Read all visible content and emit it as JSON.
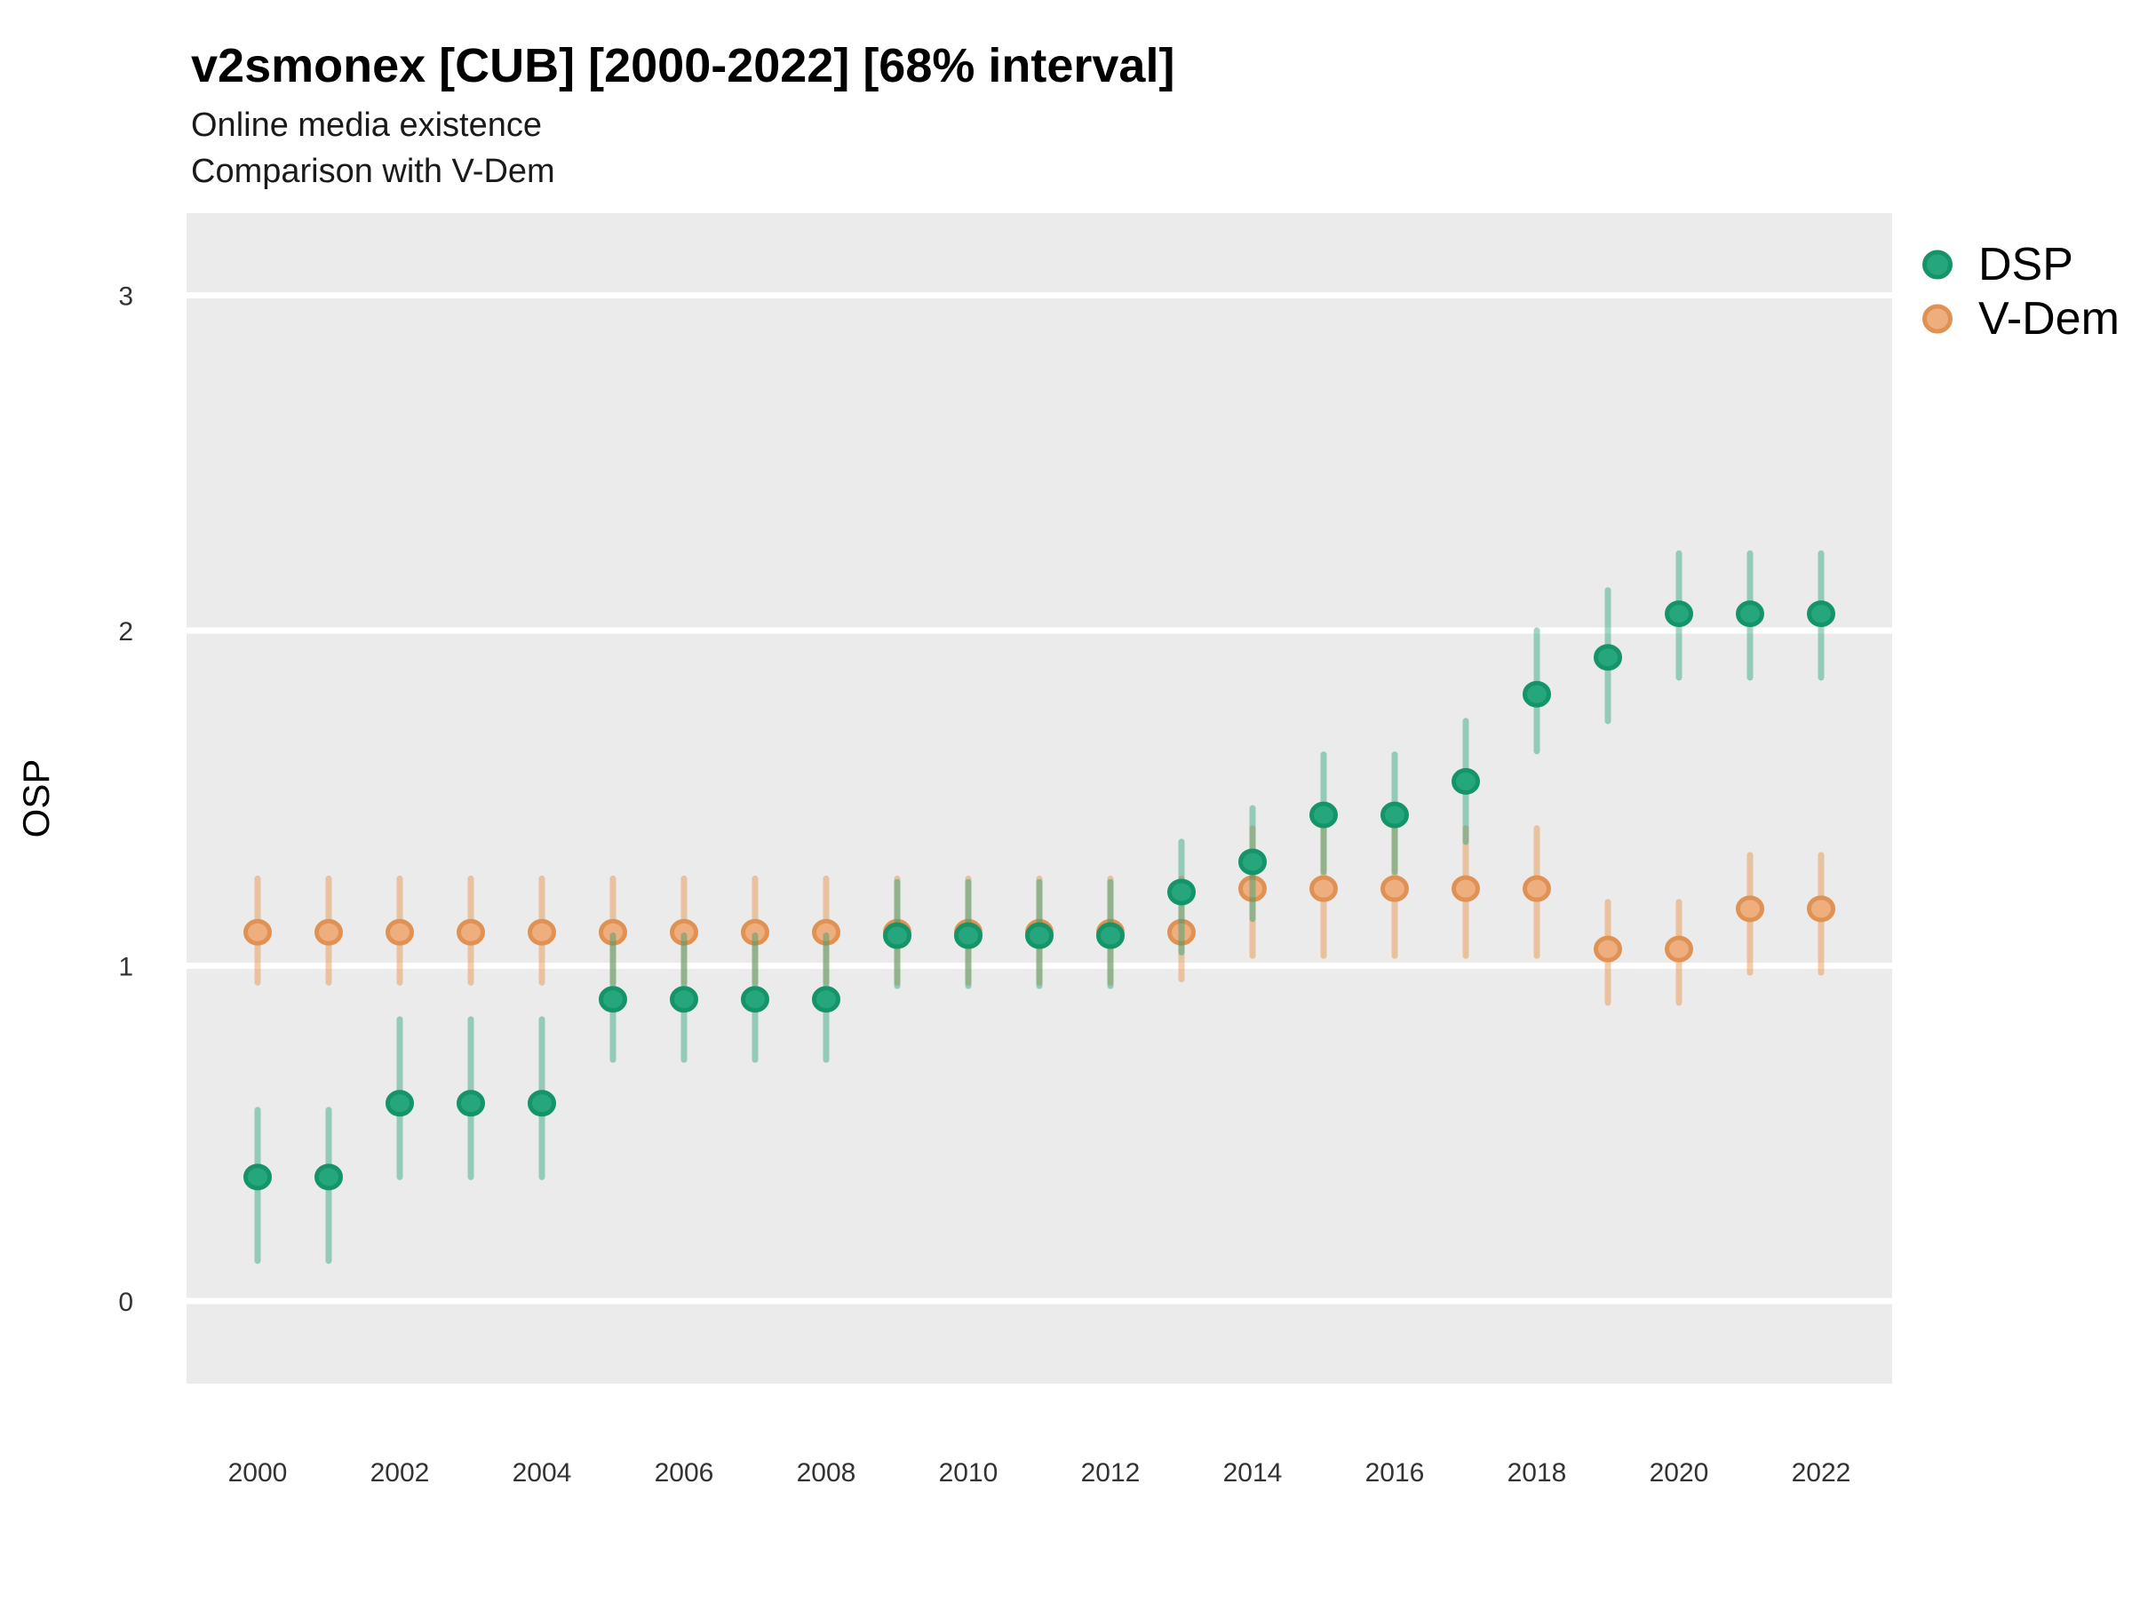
{
  "header": {
    "title": "v2smonex [CUB] [2000-2022] [68% interval]",
    "subtitle_line1": "Online media existence",
    "subtitle_line2": "Comparison with V-Dem"
  },
  "y_axis": {
    "label": "OSP",
    "ticks": [
      "0",
      "1",
      "2",
      "3"
    ]
  },
  "x_axis": {
    "ticks": [
      "2000",
      "2002",
      "2004",
      "2006",
      "2008",
      "2010",
      "2012",
      "2014",
      "2016",
      "2018",
      "2020",
      "2022"
    ]
  },
  "legend": {
    "entries": [
      {
        "label": "DSP",
        "fill": "#26A67C",
        "stroke": "#169469"
      },
      {
        "label": "V-Dem",
        "fill": "#EFAE7D",
        "stroke": "#E09254"
      }
    ]
  },
  "colors": {
    "panel_bg": "#EBEBEB",
    "gridline": "#FFFFFF",
    "dsp_fill": "#26A67C",
    "dsp_stroke": "#169469",
    "dsp_bar": "rgba(27,158,119,0.42)",
    "vdem_fill": "#EFAE7D",
    "vdem_stroke": "#E09254",
    "vdem_bar": "rgba(230,141,59,0.45)"
  },
  "chart_data": {
    "type": "pointrange",
    "title": "v2smonex [CUB] [2000-2022] [68% interval]",
    "subtitle": [
      "Online media existence",
      "Comparison with V-Dem"
    ],
    "interval": "68%",
    "xlabel": "",
    "ylabel": "OSP",
    "ylim": [
      -0.25,
      3.25
    ],
    "yticks": [
      0,
      1,
      2,
      3
    ],
    "xticks": [
      2000,
      2002,
      2004,
      2006,
      2008,
      2010,
      2012,
      2014,
      2016,
      2018,
      2020,
      2022
    ],
    "grid": "horizontal-major-only",
    "legend_position": "right-top",
    "x": [
      2000,
      2001,
      2002,
      2003,
      2004,
      2005,
      2006,
      2007,
      2008,
      2009,
      2010,
      2011,
      2012,
      2013,
      2014,
      2015,
      2016,
      2017,
      2018,
      2019,
      2020,
      2021,
      2022
    ],
    "series": [
      {
        "name": "DSP",
        "fill": "#26A67C",
        "stroke": "#169469",
        "bar": "rgba(27,158,119,0.42)",
        "mid": [
          0.37,
          0.37,
          0.59,
          0.59,
          0.59,
          0.9,
          0.9,
          0.9,
          0.9,
          1.09,
          1.09,
          1.09,
          1.09,
          1.22,
          1.31,
          1.45,
          1.45,
          1.55,
          1.81,
          1.92,
          2.05,
          2.05,
          2.05
        ],
        "lo": [
          0.12,
          0.12,
          0.37,
          0.37,
          0.37,
          0.72,
          0.72,
          0.72,
          0.72,
          0.94,
          0.94,
          0.94,
          0.94,
          1.04,
          1.14,
          1.28,
          1.28,
          1.37,
          1.64,
          1.73,
          1.86,
          1.86,
          1.86
        ],
        "hi": [
          0.57,
          0.57,
          0.84,
          0.84,
          0.84,
          1.09,
          1.09,
          1.09,
          1.09,
          1.25,
          1.25,
          1.25,
          1.25,
          1.37,
          1.47,
          1.63,
          1.63,
          1.73,
          2.0,
          2.12,
          2.23,
          2.23,
          2.23
        ]
      },
      {
        "name": "V-Dem",
        "fill": "#EFAE7D",
        "stroke": "#E09254",
        "bar": "rgba(230,141,59,0.45)",
        "mid": [
          1.1,
          1.1,
          1.1,
          1.1,
          1.1,
          1.1,
          1.1,
          1.1,
          1.1,
          1.1,
          1.1,
          1.1,
          1.1,
          1.1,
          1.23,
          1.23,
          1.23,
          1.23,
          1.23,
          1.05,
          1.05,
          1.17,
          1.17
        ],
        "lo": [
          0.95,
          0.95,
          0.95,
          0.95,
          0.95,
          0.95,
          0.95,
          0.95,
          0.95,
          0.95,
          0.95,
          0.95,
          0.95,
          0.96,
          1.03,
          1.03,
          1.03,
          1.03,
          1.03,
          0.89,
          0.89,
          0.98,
          0.98
        ],
        "hi": [
          1.26,
          1.26,
          1.26,
          1.26,
          1.26,
          1.26,
          1.26,
          1.26,
          1.26,
          1.26,
          1.26,
          1.26,
          1.26,
          1.26,
          1.41,
          1.41,
          1.41,
          1.41,
          1.41,
          1.19,
          1.19,
          1.33,
          1.33
        ]
      }
    ]
  }
}
